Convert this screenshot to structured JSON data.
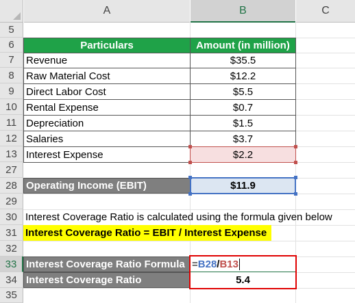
{
  "columns": [
    "A",
    "B",
    "C"
  ],
  "selected_column": "B",
  "rows": [
    "5",
    "6",
    "7",
    "8",
    "9",
    "10",
    "11",
    "12",
    "13",
    "27",
    "28",
    "29",
    "30",
    "31",
    "32",
    "33",
    "34",
    "35"
  ],
  "selected_row": "33",
  "table": {
    "header": {
      "particulars": "Particulars",
      "amount": "Amount (in million)"
    },
    "items": [
      {
        "label": "Revenue",
        "value": "$35.5"
      },
      {
        "label": "Raw Material Cost",
        "value": "$12.2"
      },
      {
        "label": "Direct Labor Cost",
        "value": "$5.5"
      },
      {
        "label": "Rental Expense",
        "value": "$0.7"
      },
      {
        "label": "Depreciation",
        "value": "$1.5"
      },
      {
        "label": "Salaries",
        "value": "$3.7"
      },
      {
        "label": "Interest Expense",
        "value": "$2.2"
      }
    ]
  },
  "ebit": {
    "label": "Operating Income (EBIT)",
    "value": "$11.9"
  },
  "note": "Interest Coverage Ratio is calculated using the formula given below",
  "formula_highlight": "Interest Coverage Ratio = EBIT / Interest Expense",
  "formula_row": {
    "label": "Interest Coverage Ratio Formula",
    "eq": "=",
    "ref1": "B28",
    "op": "/",
    "ref2": "B13"
  },
  "result_row": {
    "label": "Interest Coverage Ratio",
    "value": "5.4"
  },
  "colors": {
    "header_green": "#1fa248",
    "grey_label": "#7f7f7f",
    "ebit_fill": "#dce6f2",
    "ref_blue": "#4472c4",
    "ref_red": "#c0504d",
    "highlight_yellow": "#ffff00",
    "formula_border": "#e00000"
  }
}
